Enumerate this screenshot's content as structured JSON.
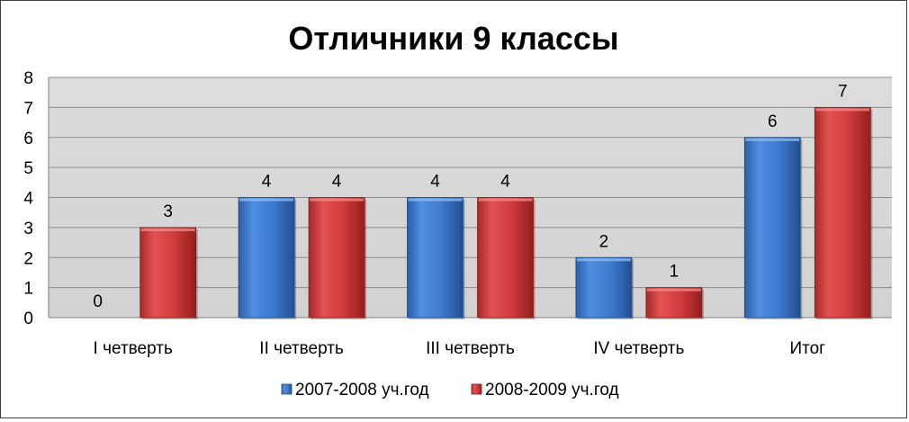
{
  "chart_data": {
    "type": "bar",
    "title": "Отличники 9 классы",
    "xlabel": "",
    "ylabel": "",
    "categories": [
      "I четверть",
      "II четверть",
      "III четверть",
      "IV четверть",
      "Итог"
    ],
    "series": [
      {
        "name": "2007-2008 уч.год",
        "values": [
          0,
          4,
          4,
          2,
          6
        ],
        "color": "#3f7fd0"
      },
      {
        "name": "2008-2009 уч.год",
        "values": [
          3,
          4,
          4,
          1,
          7
        ],
        "color": "#d23a3a"
      }
    ],
    "ylim": [
      0,
      8
    ],
    "yticks": [
      0,
      1,
      2,
      3,
      4,
      5,
      6,
      7,
      8
    ],
    "grid": true,
    "data_labels": true,
    "legend_position": "bottom",
    "plot_background": "#d9d9d9"
  }
}
